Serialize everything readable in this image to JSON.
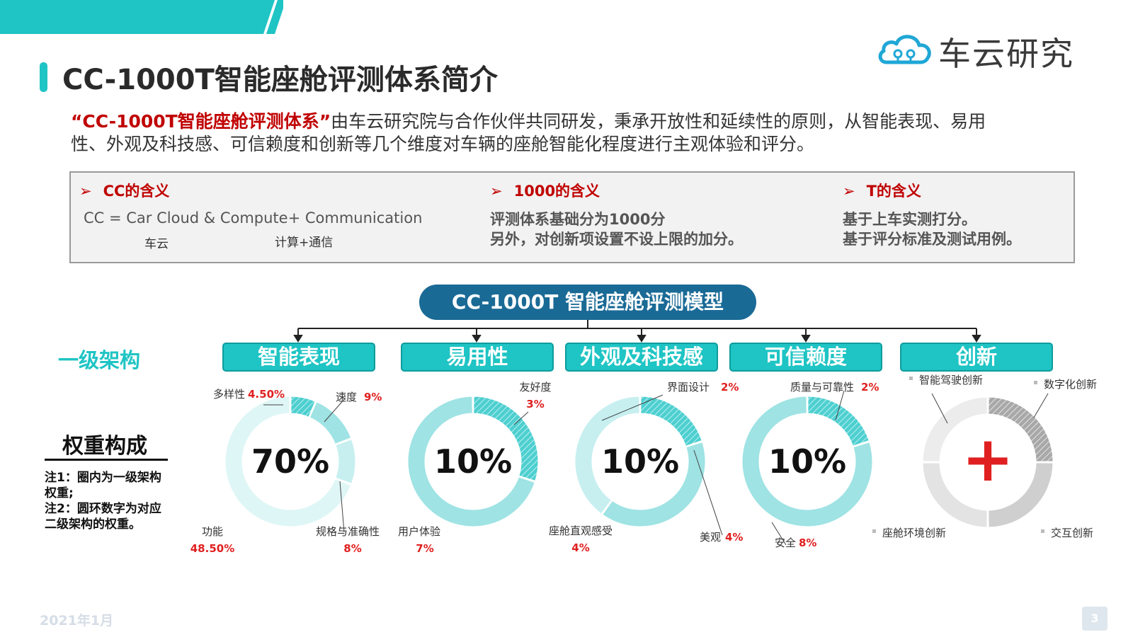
{
  "title": "CC-1000T智能座舱评测体系简介",
  "logo": {
    "text": "车云研究",
    "icon": "cloud-logo-icon"
  },
  "intro": {
    "highlight": "“CC-1000T智能座舱评测体系”",
    "line1_rest": "由车云研究院与合作伙伴共同研发，秉承开放性和延续性的原则，从智能表现、易用",
    "line2": "性、外观及科技感、可信赖度和创新等几个维度对车辆的座舱智能化程度进行主观体验和评分。"
  },
  "meaning_box": {
    "arrow": "➢",
    "cc": {
      "heading": "CC的含义",
      "formula": "CC = Car Cloud & Compute+ Communication",
      "sub1": "车云",
      "sub2": "计算+通信"
    },
    "k1000": {
      "heading": "1000的含义",
      "line1": "评测体系基础分为1000分",
      "line2": "另外，对创新项设置不设上限的加分。"
    },
    "t": {
      "heading": "T的含义",
      "line1": "基于上车实测打分。",
      "line2": "基于评分标准及测试用例。"
    }
  },
  "model_title": "CC-1000T 智能座舱评测模型",
  "level_label": "一级架构",
  "weight_label": "权重构成",
  "notes": {
    "n1": "注1：圈内为一级架构权重;",
    "n2": "注2：圆环数字为对应二级架构的权重。"
  },
  "colors": {
    "teal": "#1fc4c4",
    "navy": "#1a6a96",
    "red": "#e02020",
    "gray": "#9a9a9a"
  },
  "chart_data": [
    {
      "type": "pie",
      "title": "智能表现",
      "center_label": "70%",
      "center_value": 70,
      "categories": [
        "多样性",
        "速度",
        "规格与准确性",
        "功能"
      ],
      "values": [
        4.5,
        9,
        8,
        48.5
      ],
      "value_labels": [
        "4.50%",
        "9%",
        "8%",
        "48.50%"
      ]
    },
    {
      "type": "pie",
      "title": "易用性",
      "center_label": "10%",
      "center_value": 10,
      "categories": [
        "友好度",
        "用户体验"
      ],
      "values": [
        3,
        7
      ],
      "value_labels": [
        "3%",
        "7%"
      ]
    },
    {
      "type": "pie",
      "title": "外观及科技感",
      "center_label": "10%",
      "center_value": 10,
      "categories": [
        "界面设计",
        "美观",
        "座舱直观感受"
      ],
      "values": [
        2,
        4,
        4
      ],
      "value_labels": [
        "2%",
        "4%",
        "4%"
      ]
    },
    {
      "type": "pie",
      "title": "可信赖度",
      "center_label": "10%",
      "center_value": 10,
      "categories": [
        "质量与可靠性",
        "安全"
      ],
      "values": [
        2,
        8
      ],
      "value_labels": [
        "2%",
        "8%"
      ]
    },
    {
      "type": "pie",
      "title": "创新",
      "center_label": "+",
      "categories": [
        "智能驾驶创新",
        "数字化创新",
        "交互创新",
        "座舱环境创新"
      ],
      "values": [
        1,
        1,
        1,
        1
      ],
      "value_labels": [
        "",
        "",
        "",
        ""
      ]
    }
  ],
  "footer": {
    "date": "2021年1月",
    "page": "3"
  }
}
